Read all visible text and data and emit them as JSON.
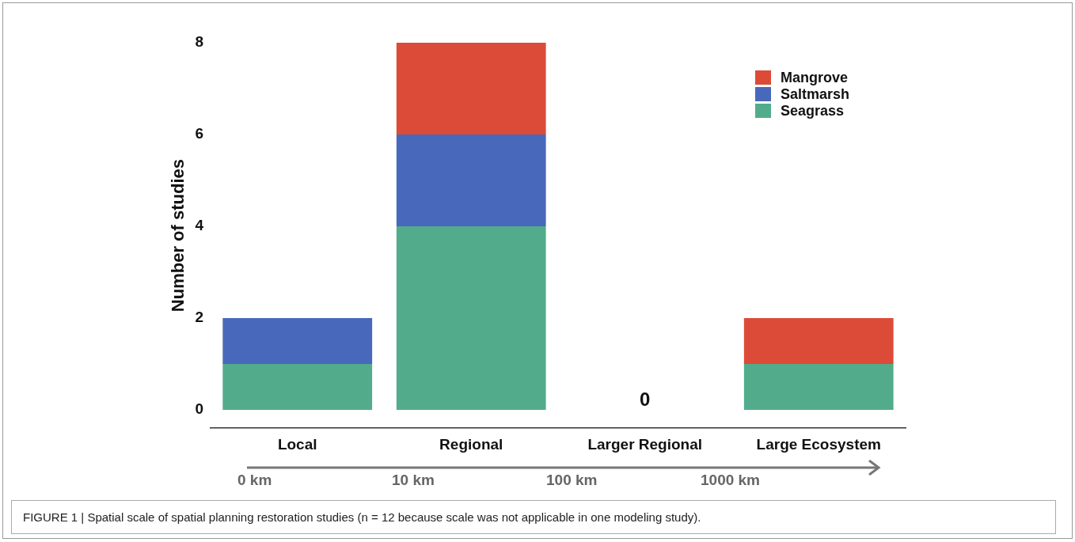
{
  "chart_data": {
    "type": "bar",
    "stacked": true,
    "ylabel": "Number of studies",
    "categories": [
      "Local",
      "Regional",
      "Larger Regional",
      "Large Ecosystem"
    ],
    "series": [
      {
        "name": "Seagrass",
        "color": "#52ac8b",
        "values": [
          1,
          4,
          0,
          1
        ]
      },
      {
        "name": "Saltmarsh",
        "color": "#4868bb",
        "values": [
          1,
          2,
          0,
          0
        ]
      },
      {
        "name": "Mangrove",
        "color": "#dc4b38",
        "values": [
          0,
          2,
          0,
          1
        ]
      }
    ],
    "ylim": [
      -0.4,
      8
    ],
    "yticks": [
      0,
      2,
      4,
      6,
      8
    ],
    "grid": false,
    "legend": "top right",
    "annotations": [
      {
        "text": "0",
        "x": "Larger Regional",
        "y": 0
      },
      "0 km",
      "10 km",
      "100 km",
      "1000 km",
      "FIGURE 1 | Spatial scale of spatial planning restoration studies (n = 12 because scale was not applicable in one modeling study)."
    ]
  }
}
